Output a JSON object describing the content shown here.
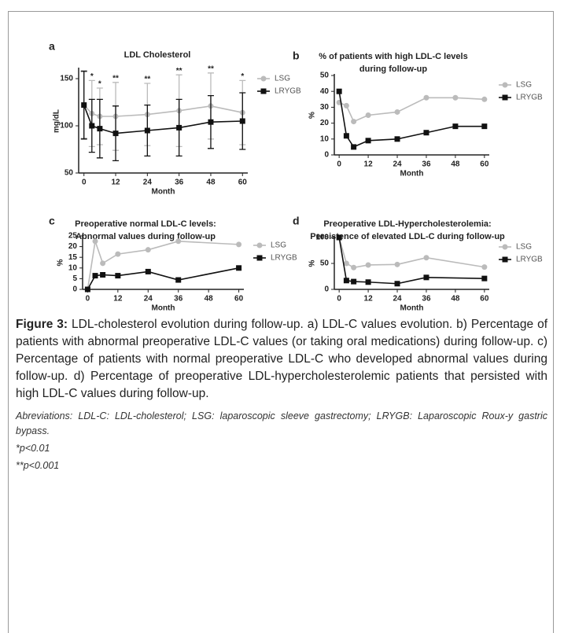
{
  "chart_data": [
    {
      "type": "line",
      "panel": "a",
      "title": [
        "LDL  Cholesterol"
      ],
      "ylabel": "mg/dL",
      "xlabel": "Month",
      "x": [
        0,
        3,
        6,
        12,
        24,
        36,
        48,
        60
      ],
      "xlim": [
        -2,
        62
      ],
      "xticks": [
        0,
        12,
        24,
        36,
        48,
        60
      ],
      "ylim": [
        50,
        160
      ],
      "yticks": [
        50,
        100,
        150
      ],
      "series": [
        {
          "name": "LSG",
          "color": "#bbbbbb",
          "marker": "circle",
          "values": [
            122,
            113,
            110,
            110,
            112,
            116,
            121,
            114
          ],
          "errors": [
            35,
            35,
            30,
            36,
            33,
            38,
            35,
            34
          ]
        },
        {
          "name": "LRYGB",
          "color": "#111111",
          "marker": "square",
          "values": [
            122,
            100,
            97,
            92,
            95,
            98,
            104,
            105
          ],
          "errors": [
            36,
            28,
            31,
            29,
            27,
            30,
            28,
            30
          ]
        }
      ],
      "annotations": [
        {
          "x": 3,
          "text": "*"
        },
        {
          "x": 6,
          "text": "*"
        },
        {
          "x": 12,
          "text": "**"
        },
        {
          "x": 24,
          "text": "**"
        },
        {
          "x": 36,
          "text": "**"
        },
        {
          "x": 48,
          "text": "**"
        },
        {
          "x": 60,
          "text": "*"
        }
      ]
    },
    {
      "type": "line",
      "panel": "b",
      "title": [
        "% of patients with high LDL-C levels",
        "during follow-up"
      ],
      "ylabel": "%",
      "xlabel": "Month",
      "x": [
        0,
        3,
        6,
        12,
        24,
        36,
        48,
        60
      ],
      "xlim": [
        -2,
        62
      ],
      "xticks": [
        0,
        12,
        24,
        36,
        48,
        60
      ],
      "ylim": [
        0,
        50
      ],
      "yticks": [
        0,
        10,
        20,
        30,
        40,
        50
      ],
      "series": [
        {
          "name": "LSG",
          "color": "#bbbbbb",
          "marker": "circle",
          "values": [
            33,
            31,
            21,
            25,
            27,
            36,
            36,
            35
          ]
        },
        {
          "name": "LRYGB",
          "color": "#111111",
          "marker": "square",
          "values": [
            40,
            12,
            5,
            9,
            10,
            14,
            18,
            18
          ]
        }
      ]
    },
    {
      "type": "line",
      "panel": "c",
      "title": [
        "Preoperative normal LDL-C levels:",
        "Abnormal values during follow-up"
      ],
      "ylabel": "%",
      "xlabel": "Month",
      "x": [
        0,
        3,
        6,
        12,
        24,
        36,
        60
      ],
      "xlim": [
        -2,
        62
      ],
      "xticks": [
        0,
        12,
        24,
        36,
        48,
        60
      ],
      "ylim": [
        0,
        25
      ],
      "yticks": [
        0,
        5,
        10,
        15,
        20,
        25
      ],
      "series": [
        {
          "name": "LSG",
          "color": "#bbbbbb",
          "marker": "circle",
          "values": [
            0,
            22.5,
            12.2,
            16.5,
            18.5,
            22.5,
            21
          ]
        },
        {
          "name": "LRYGB",
          "color": "#111111",
          "marker": "square",
          "values": [
            0,
            6.4,
            6.8,
            6.4,
            8.3,
            4.4,
            10
          ]
        }
      ]
    },
    {
      "type": "line",
      "panel": "d",
      "title": [
        "Preoperative LDL-Hypercholesterolemia:",
        "Persistence of elevated LDL-C during follow-up"
      ],
      "ylabel": "%",
      "xlabel": "Month",
      "x": [
        0,
        3,
        6,
        12,
        24,
        36,
        60
      ],
      "xlim": [
        -2,
        62
      ],
      "xticks": [
        0,
        12,
        24,
        36,
        48,
        60
      ],
      "ylim": [
        0,
        100
      ],
      "yticks": [
        0,
        50,
        100
      ],
      "series": [
        {
          "name": "LSG",
          "color": "#bbbbbb",
          "marker": "circle",
          "values": [
            100,
            50,
            42,
            47,
            48,
            61,
            43
          ]
        },
        {
          "name": "LRYGB",
          "color": "#111111",
          "marker": "square",
          "values": [
            100,
            17,
            15,
            14,
            11,
            23,
            21
          ]
        }
      ]
    }
  ],
  "figure": {
    "label": "Figure 3:",
    "caption": "LDL-cholesterol evolution during follow-up. a) LDL-C values evolution. b) Percentage of patients with abnormal preoperative LDL-C values (or taking oral medications) during follow-up. c) Percentage of patients with normal preoperative LDL-C who developed abnormal values during follow-up. d) Percentage of preoperative LDL-hypercholesterolemic patients that persisted with high LDL-C values during follow-up.",
    "abbreviations": "Abreviations: LDL-C: LDL-cholesterol; LSG: laparoscopic sleeve gastrectomy; LRYGB: Laparoscopic Roux-y gastric bypass.",
    "notes": [
      "*p<0.01",
      "**p<0.001"
    ]
  }
}
